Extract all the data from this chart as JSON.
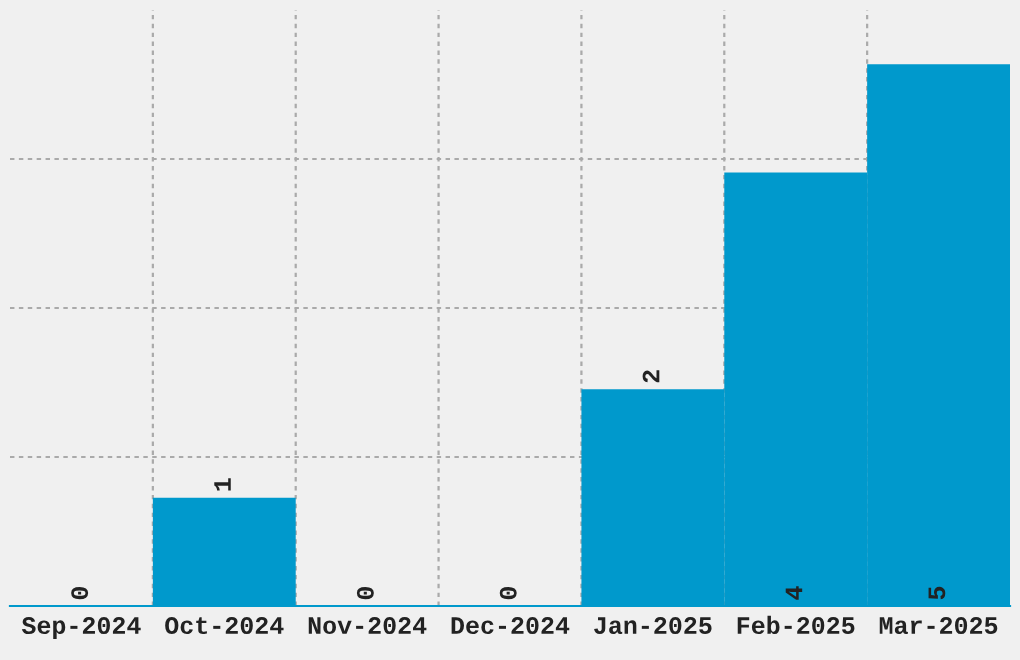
{
  "chart_data": {
    "type": "bar",
    "categories": [
      "Sep-2024",
      "Oct-2024",
      "Nov-2024",
      "Dec-2024",
      "Jan-2025",
      "Feb-2025",
      "Mar-2025"
    ],
    "values": [
      0,
      1,
      0,
      0,
      2,
      4,
      5
    ],
    "color": "#0099cc",
    "ylim": [
      0,
      5.5
    ],
    "yticks": [
      {
        "value": 1.375,
        "label": null
      },
      {
        "value": 2.75,
        "label": null
      },
      {
        "value": 4.125,
        "label": null
      }
    ],
    "tick_labels": "x",
    "grid": true,
    "data_labels": true
  }
}
